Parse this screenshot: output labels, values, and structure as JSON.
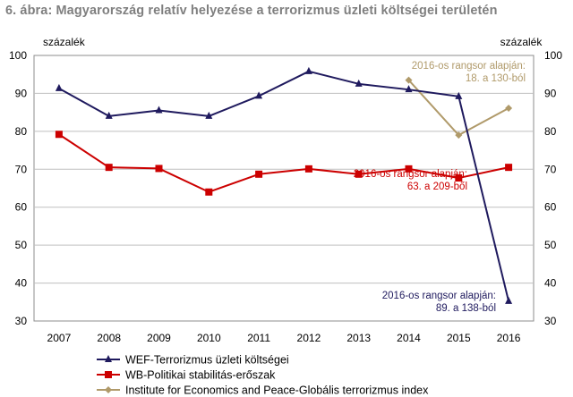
{
  "title": "6. ábra: Magyarország relatív helyezése a terrorizmus üzleti költségei területén",
  "chart_data": {
    "type": "line",
    "title": "6. ábra: Magyarország relatív helyezése a terrorizmus üzleti költségei területén",
    "y_unit_left": "százalék",
    "y_unit_right": "százalék",
    "x": [
      "2007",
      "2008",
      "2009",
      "2010",
      "2011",
      "2012",
      "2013",
      "2014",
      "2015",
      "2016"
    ],
    "ylim": [
      30,
      100
    ],
    "yticks": [
      30,
      40,
      50,
      60,
      70,
      80,
      90,
      100
    ],
    "grid": true,
    "legend_position": "bottom",
    "series": [
      {
        "name": "WEF-Terrorizmus üzleti költségei",
        "color": "#1f1a5e",
        "marker": "triangle",
        "values": [
          91.3,
          84.0,
          85.5,
          84.0,
          89.3,
          95.8,
          92.5,
          91.0,
          89.2,
          35.2
        ]
      },
      {
        "name": "WB-Politikai stabilitás-erőszak",
        "color": "#cc0000",
        "marker": "square",
        "values": [
          79.2,
          70.5,
          70.2,
          64.0,
          68.7,
          70.1,
          68.7,
          70.1,
          67.7,
          70.5
        ]
      },
      {
        "name": "Institute for Economics and Peace-Globális terrorizmus index",
        "color": "#b09a6a",
        "marker": "diamond",
        "values": [
          null,
          null,
          null,
          null,
          null,
          null,
          null,
          93.5,
          79.0,
          86.1
        ]
      }
    ],
    "annotations": [
      {
        "lines": [
          "2016-os rangsor alapján:",
          "18. a 130-ból"
        ],
        "color": "#b09a6a"
      },
      {
        "lines": [
          "2016-os rangsor alapján:",
          "63. a 209-ből"
        ],
        "color": "#cc0000"
      },
      {
        "lines": [
          "2016-os rangsor alapján:",
          "89. a 138-ból"
        ],
        "color": "#1f1a5e"
      }
    ]
  }
}
